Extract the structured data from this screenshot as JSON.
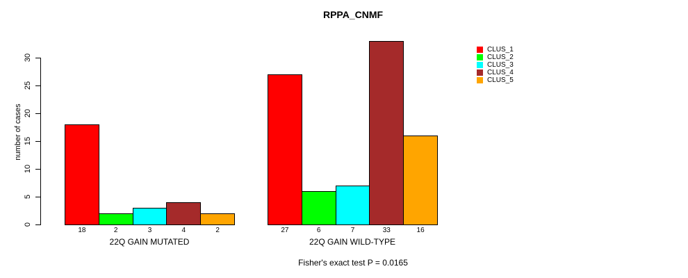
{
  "chart_data": {
    "type": "bar",
    "title": "RPPA_CNMF",
    "ylabel": "number of cases",
    "xlabel": "",
    "ylim": [
      0,
      30
    ],
    "yticks": [
      0,
      5,
      10,
      15,
      20,
      25,
      30
    ],
    "grid": false,
    "legend_position": "right",
    "groups": [
      "22Q GAIN MUTATED",
      "22Q GAIN WILD-TYPE"
    ],
    "series": [
      {
        "name": "CLUS_1",
        "color": "#FF0000",
        "values": [
          18,
          27
        ]
      },
      {
        "name": "CLUS_2",
        "color": "#00FF00",
        "values": [
          2,
          6
        ]
      },
      {
        "name": "CLUS_3",
        "color": "#00FFFF",
        "values": [
          3,
          7
        ]
      },
      {
        "name": "CLUS_4",
        "color": "#A52A2A",
        "values": [
          4,
          33
        ]
      },
      {
        "name": "CLUS_5",
        "color": "#FFA500",
        "values": [
          2,
          16
        ]
      }
    ],
    "bar_labels": [
      [
        18,
        2,
        3,
        4,
        2
      ],
      [
        27,
        6,
        7,
        33,
        16
      ]
    ],
    "annotation": "Fisher's exact test P = 0.0165"
  },
  "colors": {
    "axis": "#000000",
    "text": "#000000",
    "background": "#FFFFFF"
  }
}
